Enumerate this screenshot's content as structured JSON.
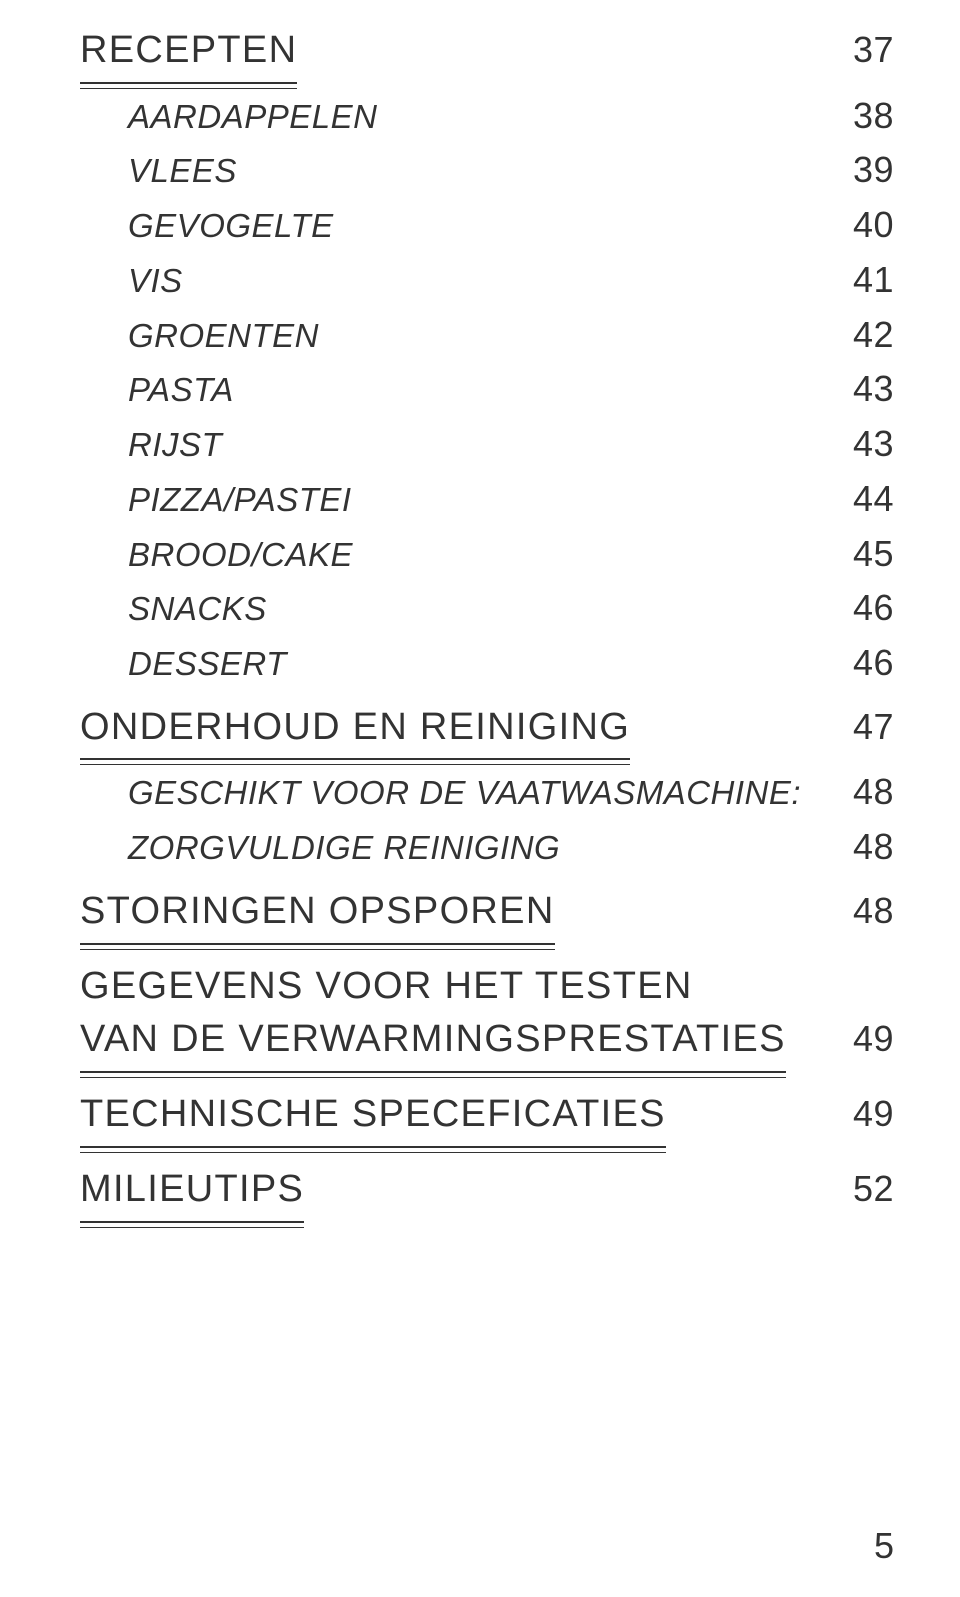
{
  "text_color": "#333333",
  "background_color": "#ffffff",
  "section_font_size_pt": 29,
  "sub_font_size_pt": 25,
  "pagenum_font_size_pt": 27,
  "rule_color": "#333333",
  "toc": [
    {
      "type": "section",
      "label": "RECEPTEN",
      "page": "37"
    },
    {
      "type": "sub",
      "label": "AARDAPPELEN",
      "page": "38"
    },
    {
      "type": "sub",
      "label": "VLEES",
      "page": "39"
    },
    {
      "type": "sub",
      "label": "GEVOGELTE",
      "page": "40"
    },
    {
      "type": "sub",
      "label": "VIS",
      "page": "41"
    },
    {
      "type": "sub",
      "label": "GROENTEN",
      "page": "42"
    },
    {
      "type": "sub",
      "label": "PASTA",
      "page": "43"
    },
    {
      "type": "sub",
      "label": "RIJST",
      "page": "43"
    },
    {
      "type": "sub",
      "label": "PIZZA/PASTEI",
      "page": "44"
    },
    {
      "type": "sub",
      "label": "BROOD/CAKE",
      "page": "45"
    },
    {
      "type": "sub",
      "label": "SNACKS",
      "page": "46"
    },
    {
      "type": "sub",
      "label": "DESSERT",
      "page": "46"
    },
    {
      "type": "section",
      "label": "ONDERHOUD EN REINIGING",
      "page": "47"
    },
    {
      "type": "sub",
      "label": "GESCHIKT VOOR DE VAATWASMACHINE:",
      "page": "48"
    },
    {
      "type": "sub",
      "label": "ZORGVULDIGE REINIGING",
      "page": "48"
    },
    {
      "type": "section",
      "label": "STORINGEN OPSPOREN",
      "page": "48"
    },
    {
      "type": "section_multiline",
      "label_line1": "GEGEVENS VOOR HET TESTEN",
      "label_line2": "VAN DE VERWARMINGSPRESTATIES",
      "page": "49"
    },
    {
      "type": "section",
      "label": "TECHNISCHE SPECEFICATIES",
      "page": "49"
    },
    {
      "type": "section",
      "label": "MILIEUTIPS",
      "page": "52"
    }
  ],
  "footer_page_number": "5"
}
